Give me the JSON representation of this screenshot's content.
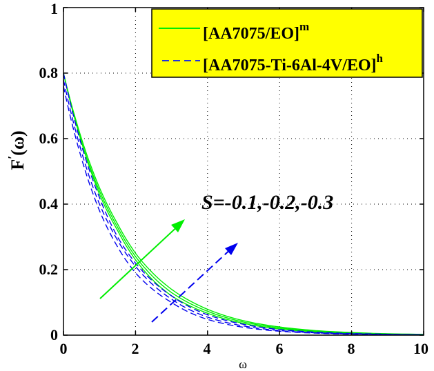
{
  "chart_data": {
    "type": "line",
    "title": "",
    "xlabel": "ω",
    "ylabel": "F′(ω)",
    "xlim": [
      0,
      10
    ],
    "ylim": [
      0,
      1
    ],
    "xticks": [
      "0",
      "2",
      "4",
      "6",
      "8",
      "10"
    ],
    "yticks": [
      "0",
      "0.2",
      "0.4",
      "0.6",
      "0.8",
      "1"
    ],
    "grid": true,
    "legend_position": "upper right",
    "legend": [
      "[AA7075/EO]^m",
      "[AA7075-Ti-6Al-4V/EO]^h"
    ],
    "annotation": "S=-0.1,-0.2,-0.3",
    "x": [
      0,
      0.5,
      1,
      1.5,
      2,
      3,
      4,
      5,
      6,
      7,
      8
    ],
    "series": [
      {
        "name": "[AA7075/EO]^m S=-0.1",
        "color": "#00ff00",
        "style": "solid",
        "values": [
          0.8,
          0.6,
          0.45,
          0.34,
          0.25,
          0.14,
          0.079,
          0.044,
          0.025,
          0.014,
          0.008
        ]
      },
      {
        "name": "[AA7075/EO]^m S=-0.2",
        "color": "#00ff00",
        "style": "solid",
        "values": [
          0.8,
          0.59,
          0.44,
          0.33,
          0.24,
          0.13,
          0.073,
          0.04,
          0.022,
          0.012,
          0.007
        ]
      },
      {
        "name": "[AA7075/EO]^m S=-0.3",
        "color": "#00ff00",
        "style": "solid",
        "values": [
          0.8,
          0.59,
          0.43,
          0.32,
          0.23,
          0.12,
          0.067,
          0.036,
          0.019,
          0.01,
          0.006
        ]
      },
      {
        "name": "[AA7075-Ti-6Al-4V/EO]^h S=-0.1",
        "color": "#0000ff",
        "style": "dashed",
        "values": [
          0.8,
          0.58,
          0.42,
          0.3,
          0.22,
          0.12,
          0.062,
          0.033,
          0.017,
          0.009,
          0.005
        ]
      },
      {
        "name": "[AA7075-Ti-6Al-4V/EO]^h S=-0.2",
        "color": "#0000ff",
        "style": "dashed",
        "values": [
          0.78,
          0.56,
          0.4,
          0.29,
          0.21,
          0.11,
          0.055,
          0.028,
          0.014,
          0.007,
          0.004
        ]
      },
      {
        "name": "[AA7075-Ti-6Al-4V/EO]^h S=-0.3",
        "color": "#0000ff",
        "style": "dashed",
        "values": [
          0.76,
          0.54,
          0.38,
          0.27,
          0.19,
          0.1,
          0.048,
          0.024,
          0.012,
          0.006,
          0.003
        ]
      }
    ]
  },
  "legend": {
    "item1_base": "[AA7075/EO]",
    "item1_sup": "m",
    "item2_base": "[AA7075-Ti-6Al-4V/EO]",
    "item2_sup": "h",
    "background": "#ffff00"
  },
  "annotation": "S=-0.1,-0.2,-0.3",
  "axes": {
    "xlabel": "ω",
    "ylabel_base": "F",
    "ylabel_prime": "′",
    "ylabel_arg": "(ω)",
    "xticks": [
      "0",
      "2",
      "4",
      "6",
      "8",
      "10"
    ],
    "yticks": [
      "0",
      "0.2",
      "0.4",
      "0.6",
      "0.8",
      "1"
    ]
  }
}
